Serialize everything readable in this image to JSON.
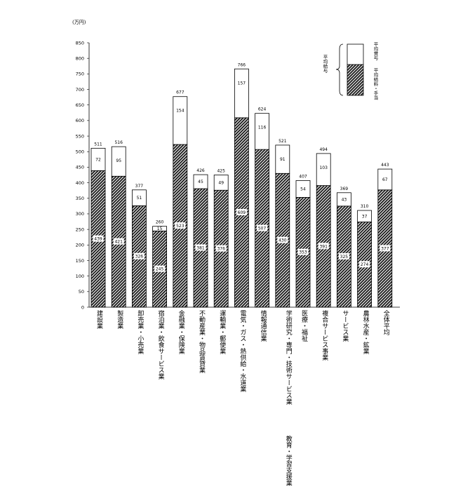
{
  "chart_data": {
    "type": "bar",
    "stacked": true,
    "unit_label": "(万円)",
    "ylim": [
      0,
      850
    ],
    "yticks": [
      0,
      50,
      100,
      150,
      200,
      250,
      300,
      350,
      400,
      450,
      500,
      550,
      600,
      650,
      700,
      750,
      800,
      850
    ],
    "categories": [
      {
        "label": "建設業",
        "label2": ""
      },
      {
        "label": "製造業",
        "label2": ""
      },
      {
        "label": "卸売業・小売業",
        "label2": ""
      },
      {
        "label": "宿泊業・飲食サービス業",
        "label2": ""
      },
      {
        "label": "金融業・保険業",
        "label2": ""
      },
      {
        "label": "不動産業・物品賃貸業",
        "label2": ""
      },
      {
        "label": "運輸業・郵便業",
        "label2": ""
      },
      {
        "label": "電気・ガス・熱供給・水道業",
        "label2": ""
      },
      {
        "label": "情報通信業",
        "label2": ""
      },
      {
        "label": "学術研究・専門・技術サービス業",
        "label2": "教育・学習支援業"
      },
      {
        "label": "医療・福祉",
        "label2": ""
      },
      {
        "label": "複合サービス事業",
        "label2": ""
      },
      {
        "label": "サービス業",
        "label2": ""
      },
      {
        "label": "農林水産・鉱業",
        "label2": ""
      },
      {
        "label": "全体平均",
        "label2": ""
      }
    ],
    "series": [
      {
        "name": "平均給料・手当",
        "pattern": "hatched",
        "values": [
          439,
          421,
          326,
          245,
          523,
          381,
          376,
          609,
          507,
          430,
          353,
          391,
          325,
          274,
          377
        ]
      },
      {
        "name": "平均賞与",
        "pattern": "white",
        "values": [
          72,
          95,
          51,
          15,
          154,
          45,
          49,
          157,
          116,
          91,
          54,
          103,
          43,
          37,
          67
        ]
      }
    ],
    "totals": [
      511,
      516,
      377,
      260,
      677,
      426,
      425,
      766,
      624,
      521,
      407,
      494,
      369,
      310,
      443
    ],
    "legend": {
      "group_label": "平均給与",
      "placement": "top-right"
    },
    "grid": false
  }
}
